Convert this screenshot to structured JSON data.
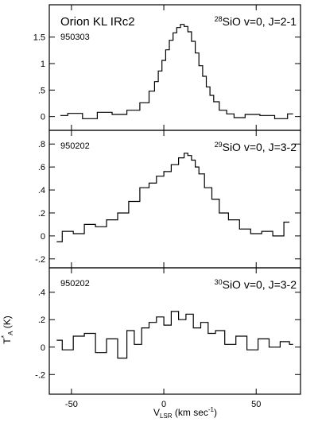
{
  "figure": {
    "x_axis_label_main": "V",
    "x_axis_label_sub": "LSR",
    "x_axis_label_units": " (km sec",
    "x_axis_label_exp": "-1",
    "x_axis_label_close": ")",
    "y_axis_label_main": "T",
    "y_axis_label_sub": "A",
    "y_axis_label_sup": "*",
    "y_axis_label_units": " (K)"
  },
  "chart_data": [
    {
      "type": "line",
      "source": "Orion KL IRc2",
      "date": "950303",
      "line_iso": "28",
      "line_rest": "SiO v=0, J=2-1",
      "xlim": [
        -62,
        74
      ],
      "ylim": [
        -0.2,
        1.9
      ],
      "yticks": [
        0,
        0.5,
        1,
        1.5
      ],
      "ytick_labels": [
        "0",
        ".5",
        "1",
        "1.5"
      ],
      "x": [
        -56,
        -48,
        -40,
        -32,
        -24,
        -16,
        -10,
        -6,
        -4,
        -2,
        0,
        2,
        4,
        6,
        8,
        10,
        12,
        14,
        16,
        18,
        20,
        22,
        24,
        26,
        28,
        32,
        36,
        40,
        48,
        56,
        64,
        70
      ],
      "series": [
        {
          "values": [
            0.02,
            0.06,
            -0.04,
            0.08,
            0.04,
            0.12,
            0.26,
            0.48,
            0.66,
            0.86,
            1.06,
            1.26,
            1.44,
            1.58,
            1.68,
            1.74,
            1.7,
            1.6,
            1.42,
            1.2,
            0.96,
            0.76,
            0.56,
            0.4,
            0.28,
            0.12,
            0.05,
            -0.02,
            0.04,
            0.02,
            -0.04,
            0.05
          ]
        }
      ]
    },
    {
      "type": "line",
      "date": "950202",
      "line_iso": "29",
      "line_rest": "SiO v=0, J=3-2",
      "xlim": [
        -62,
        74
      ],
      "ylim": [
        -0.25,
        0.85
      ],
      "yticks": [
        -0.2,
        0,
        0.2,
        0.4,
        0.6,
        0.8
      ],
      "ytick_labels": [
        "-.2",
        "0",
        ".2",
        ".4",
        ".6",
        ".8"
      ],
      "x": [
        -58,
        -52,
        -46,
        -40,
        -34,
        -28,
        -22,
        -16,
        -10,
        -6,
        -2,
        2,
        6,
        10,
        12,
        14,
        16,
        18,
        20,
        24,
        28,
        32,
        38,
        44,
        50,
        56,
        62,
        68
      ],
      "series": [
        {
          "values": [
            -0.05,
            0.04,
            0.02,
            0.1,
            0.08,
            0.14,
            0.2,
            0.3,
            0.42,
            0.46,
            0.52,
            0.56,
            0.62,
            0.68,
            0.72,
            0.7,
            0.66,
            0.6,
            0.54,
            0.42,
            0.32,
            0.2,
            0.14,
            0.06,
            0.02,
            0.04,
            0.0,
            0.12
          ]
        }
      ]
    },
    {
      "type": "line",
      "date": "950202",
      "line_iso": "30",
      "line_rest": "SiO v=0, J=3-2",
      "xlim": [
        -62,
        74
      ],
      "ylim": [
        -0.32,
        0.52
      ],
      "yticks": [
        -0.2,
        0,
        0.2,
        0.4
      ],
      "ytick_labels": [
        "-.2",
        "0",
        ".2",
        ".4"
      ],
      "xticks": [
        -50,
        0,
        50
      ],
      "xtick_labels": [
        "-50",
        "0",
        "50"
      ],
      "x": [
        -58,
        -52,
        -46,
        -40,
        -34,
        -28,
        -22,
        -18,
        -14,
        -10,
        -6,
        -2,
        2,
        6,
        10,
        14,
        18,
        22,
        26,
        30,
        36,
        42,
        48,
        54,
        60,
        66,
        70
      ],
      "series": [
        {
          "values": [
            0.05,
            -0.02,
            0.08,
            0.1,
            -0.04,
            0.06,
            -0.08,
            0.12,
            0.02,
            0.14,
            0.18,
            0.22,
            0.16,
            0.26,
            0.2,
            0.24,
            0.14,
            0.18,
            0.1,
            0.12,
            0.02,
            0.08,
            -0.02,
            0.06,
            0.0,
            0.04,
            0.02
          ]
        }
      ]
    }
  ]
}
